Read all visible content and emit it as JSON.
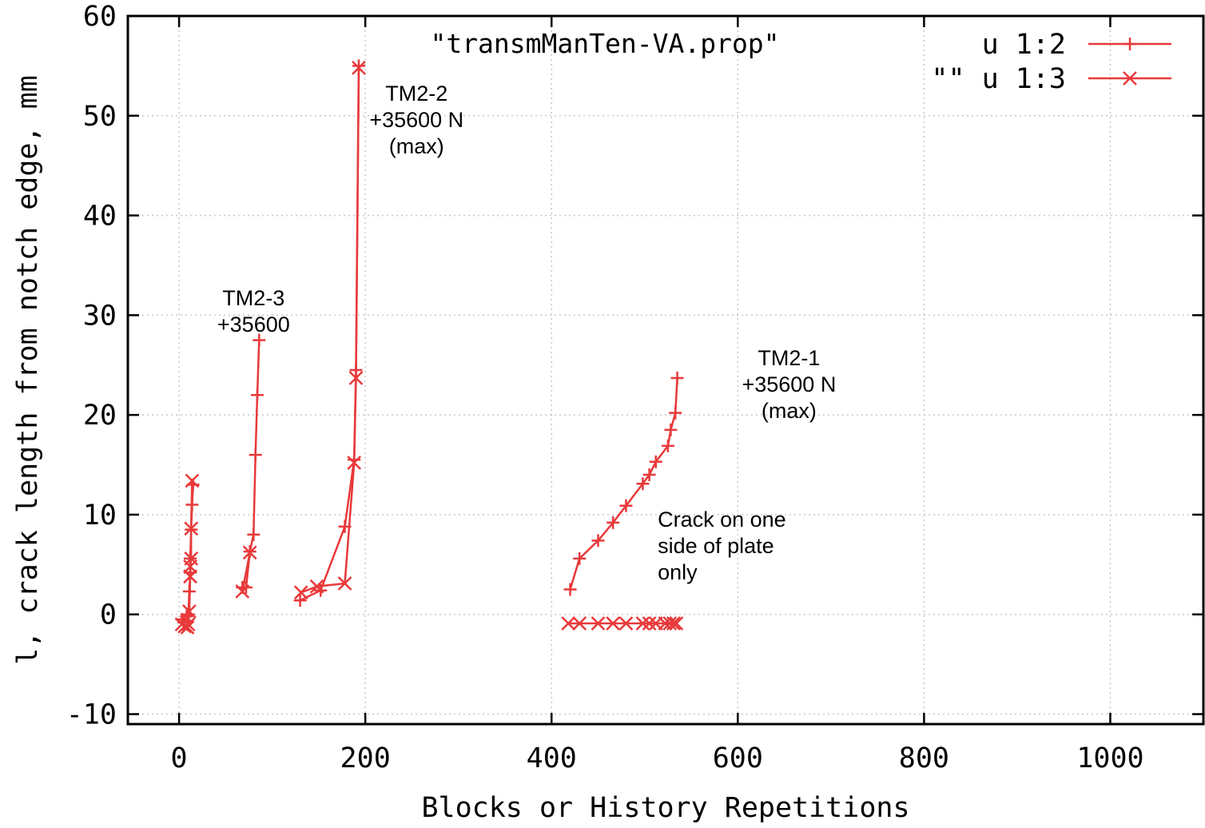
{
  "chart_data": {
    "type": "line",
    "title": "\"transmManTen-VA.prop\"",
    "xlabel": "Blocks or History Repetitions",
    "ylabel": "l, crack length from notch edge,   mm",
    "xlim": [
      -55,
      1100
    ],
    "ylim": [
      -11,
      60
    ],
    "x_ticks": [
      0,
      200,
      400,
      600,
      800,
      1000
    ],
    "y_ticks": [
      -10,
      0,
      10,
      20,
      30,
      40,
      50,
      60
    ],
    "grid": true,
    "legend_position": "top-right",
    "colors": {
      "series": "#e8393a",
      "axis": "#000000",
      "grid": "#c8c8c8"
    },
    "series": [
      {
        "name": "u 1:2",
        "marker": "plus",
        "segments": [
          [
            [
              3,
              -0.5
            ],
            [
              5,
              -0.8
            ],
            [
              8,
              -0.2
            ],
            [
              10,
              0
            ],
            [
              11,
              2.3
            ],
            [
              12,
              4.2
            ],
            [
              12,
              5.6
            ],
            [
              13,
              8.5
            ],
            [
              14,
              11
            ],
            [
              15,
              13
            ]
          ],
          [
            [
              68,
              2.7
            ],
            [
              72,
              2.7
            ],
            [
              76,
              6.3
            ],
            [
              80,
              8
            ],
            [
              82,
              16
            ],
            [
              84,
              22
            ],
            [
              86,
              27.5
            ]
          ],
          [
            [
              130,
              1.4
            ],
            [
              152,
              2.4
            ],
            [
              178,
              8.8
            ],
            [
              188,
              15.5
            ],
            [
              190,
              24.5
            ],
            [
              193,
              55
            ]
          ],
          [
            [
              420,
              2.5
            ],
            [
              430,
              5.6
            ],
            [
              450,
              7.4
            ],
            [
              466,
              9.2
            ],
            [
              480,
              10.9
            ],
            [
              498,
              13.1
            ],
            [
              505,
              14
            ],
            [
              512,
              15.3
            ],
            [
              525,
              16.9
            ],
            [
              528,
              18.5
            ],
            [
              533,
              20.2
            ],
            [
              535,
              23.7
            ]
          ]
        ]
      },
      {
        "name": "\"\" u 1:3",
        "marker": "x",
        "segments": [
          [
            [
              3,
              -1
            ],
            [
              6,
              -1.2
            ],
            [
              9,
              -1.3
            ],
            [
              10,
              -1
            ],
            [
              11,
              0.3
            ],
            [
              12,
              3.8
            ],
            [
              12,
              4.8
            ],
            [
              13,
              5.6
            ],
            [
              13,
              8.6
            ],
            [
              14,
              13.4
            ]
          ],
          [
            [
              68,
              2.3
            ],
            [
              76,
              6.2
            ]
          ],
          [
            [
              131,
              2.2
            ],
            [
              148,
              2.8
            ],
            [
              178,
              3.1
            ],
            [
              188,
              15.2
            ],
            [
              190,
              23.7
            ],
            [
              193,
              54.8
            ]
          ],
          [
            [
              418,
              -0.9
            ],
            [
              430,
              -0.9
            ],
            [
              450,
              -0.9
            ],
            [
              466,
              -0.9
            ],
            [
              480,
              -0.9
            ],
            [
              498,
              -0.9
            ],
            [
              505,
              -0.9
            ],
            [
              512,
              -0.9
            ],
            [
              522,
              -0.9
            ],
            [
              527,
              -0.9
            ],
            [
              531,
              -0.9
            ],
            [
              534,
              -0.9
            ]
          ]
        ]
      }
    ],
    "annotations": [
      {
        "lines": [
          "TM2-3",
          "+35600"
        ],
        "x": 80,
        "y": 31
      },
      {
        "lines": [
          "TM2-2",
          "+35600 N",
          "(max)"
        ],
        "x": 255,
        "y": 51.5
      },
      {
        "lines": [
          "TM2-1",
          "+35600 N",
          "(max)"
        ],
        "x": 655,
        "y": 25
      },
      {
        "lines": [
          "Crack on one",
          "side of plate",
          "only"
        ],
        "x": 514,
        "y": 8.8,
        "align": "start"
      }
    ]
  }
}
